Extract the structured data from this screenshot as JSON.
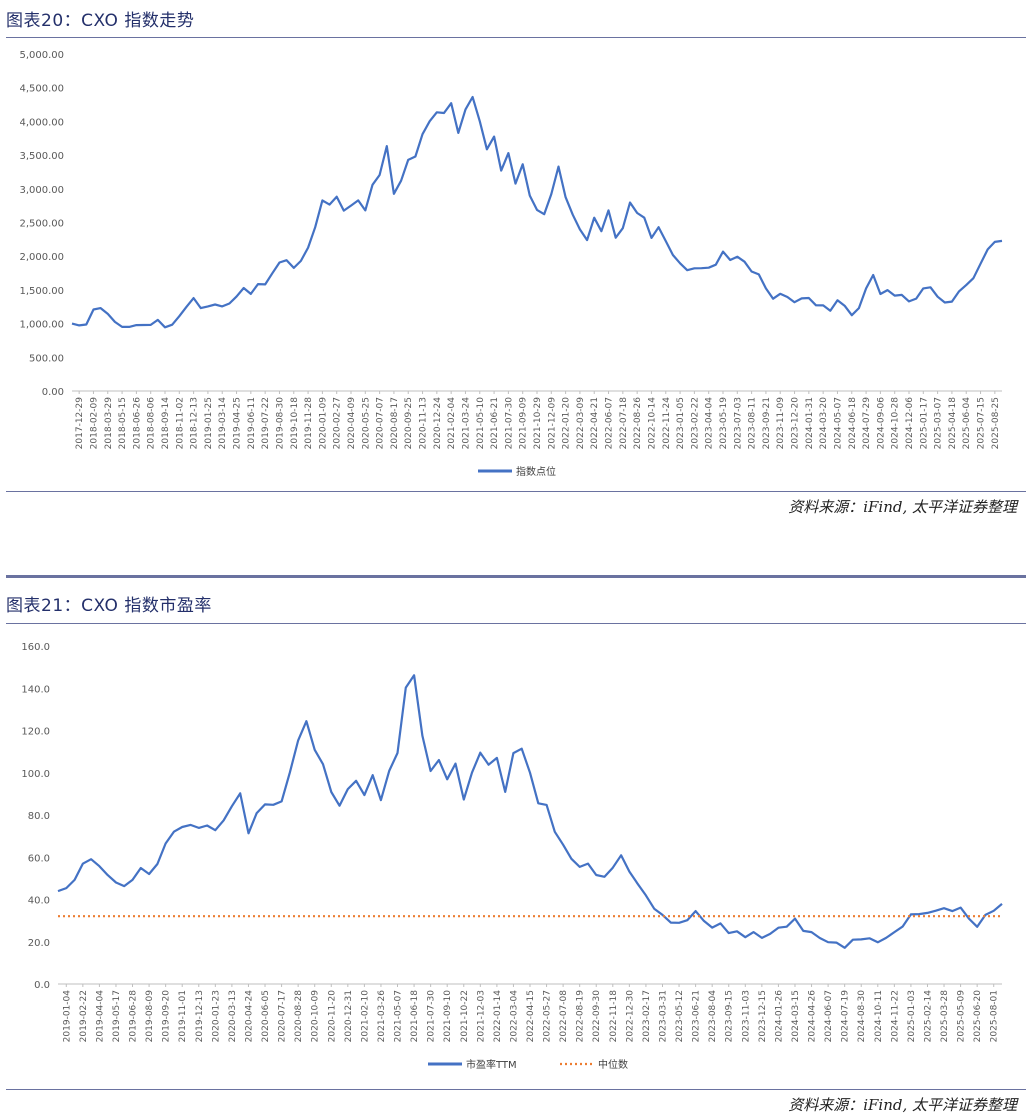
{
  "figures": [
    {
      "title": "图表20：CXO 指数走势",
      "source": "资料来源：iFind, 太平洋证券整理"
    },
    {
      "title": "图表21：CXO 指数市盈率",
      "source": "资料来源：iFind, 太平洋证券整理"
    }
  ],
  "colors": {
    "series": "#4472c4",
    "median": "#ed7d31",
    "frame": "#6a72a0",
    "title": "#24306b"
  },
  "chart_data": [
    {
      "type": "line",
      "title": "CXO 指数走势",
      "ylim": [
        0,
        5000
      ],
      "y_ticks": [
        "0.00",
        "500.00",
        "1,000.00",
        "1,500.00",
        "2,000.00",
        "2,500.00",
        "3,000.00",
        "3,500.00",
        "4,000.00",
        "4,500.00",
        "5,000.00"
      ],
      "x_ticks": [
        "2017-12-29",
        "2018-02-09",
        "2018-03-29",
        "2018-05-15",
        "2018-06-26",
        "2018-08-06",
        "2018-09-14",
        "2018-11-02",
        "2018-12-13",
        "2019-01-25",
        "2019-03-14",
        "2019-04-25",
        "2019-06-11",
        "2019-07-22",
        "2019-08-30",
        "2019-10-18",
        "2019-11-28",
        "2020-01-09",
        "2020-02-27",
        "2020-04-09",
        "2020-05-25",
        "2020-07-07",
        "2020-08-17",
        "2020-09-25",
        "2020-11-13",
        "2020-12-24",
        "2021-02-04",
        "2021-03-24",
        "2021-05-10",
        "2021-06-21",
        "2021-07-30",
        "2021-09-09",
        "2021-10-29",
        "2021-12-09",
        "2022-01-20",
        "2022-03-09",
        "2022-04-21",
        "2022-06-07",
        "2022-07-18",
        "2022-08-26",
        "2022-10-14",
        "2022-11-24",
        "2023-01-05",
        "2023-02-22",
        "2023-04-04",
        "2023-05-19",
        "2023-07-03",
        "2023-08-11",
        "2023-09-21",
        "2023-11-09",
        "2023-12-20",
        "2024-01-31",
        "2024-03-20",
        "2024-05-07",
        "2024-06-18",
        "2024-07-29",
        "2024-09-06",
        "2024-10-28",
        "2024-12-06",
        "2025-01-17",
        "2025-03-07",
        "2025-04-18",
        "2025-06-04",
        "2025-07-15",
        "2025-08-25"
      ],
      "series": [
        {
          "name": "指数点位",
          "values": [
            1000,
            960,
            1010,
            1180,
            1260,
            1120,
            1040,
            950,
            940,
            1000,
            950,
            1010,
            1030,
            960,
            980,
            1100,
            1270,
            1350,
            1260,
            1230,
            1300,
            1250,
            1290,
            1420,
            1500,
            1470,
            1560,
            1600,
            1740,
            1900,
            1960,
            1800,
            1960,
            2100,
            2450,
            2820,
            2760,
            2900,
            2650,
            2780,
            2800,
            2700,
            3050,
            3200,
            3650,
            2900,
            3150,
            3400,
            3500,
            3800,
            4000,
            4150,
            4100,
            4300,
            3800,
            4200,
            4350,
            4000,
            3600,
            3750,
            3300,
            3500,
            3100,
            3350,
            2900,
            2700,
            2600,
            2950,
            3300,
            2900,
            2600,
            2400,
            2250,
            2550,
            2400,
            2650,
            2300,
            2400,
            2800,
            2650,
            2550,
            2300,
            2400,
            2250,
            2000,
            1900,
            1800,
            1800,
            1850,
            1800,
            1900,
            2050,
            1950,
            2000,
            1900,
            1800,
            1700,
            1550,
            1350,
            1450,
            1400,
            1300,
            1400,
            1350,
            1300,
            1250,
            1200,
            1350,
            1250,
            1150,
            1200,
            1550,
            1700,
            1450,
            1500,
            1400,
            1450,
            1300,
            1400,
            1500,
            1550,
            1400,
            1300,
            1350,
            1450,
            1600,
            1650,
            1900,
            2100,
            2200,
            2250
          ]
        }
      ]
    },
    {
      "type": "line",
      "title": "CXO 指数市盈率",
      "ylim": [
        0,
        160
      ],
      "y_ticks": [
        "0.0",
        "20.0",
        "40.0",
        "60.0",
        "80.0",
        "100.0",
        "120.0",
        "140.0",
        "160.0"
      ],
      "x_ticks": [
        "2019-01-04",
        "2019-02-22",
        "2019-04-04",
        "2019-05-17",
        "2019-06-28",
        "2019-08-09",
        "2019-09-20",
        "2019-11-01",
        "2019-12-13",
        "2020-01-23",
        "2020-03-13",
        "2020-04-24",
        "2020-06-05",
        "2020-07-17",
        "2020-08-28",
        "2020-10-09",
        "2020-11-20",
        "2020-12-31",
        "2021-02-10",
        "2021-03-26",
        "2021-05-07",
        "2021-06-18",
        "2021-07-30",
        "2021-09-10",
        "2021-10-22",
        "2021-12-03",
        "2022-01-14",
        "2022-03-04",
        "2022-04-15",
        "2022-05-27",
        "2022-07-08",
        "2022-08-19",
        "2022-09-30",
        "2022-11-18",
        "2022-12-30",
        "2023-02-17",
        "2023-03-31",
        "2023-05-12",
        "2023-06-21",
        "2023-08-04",
        "2023-09-15",
        "2023-11-03",
        "2023-12-15",
        "2024-01-26",
        "2024-03-15",
        "2024-04-26",
        "2024-06-07",
        "2024-07-19",
        "2024-08-30",
        "2024-10-11",
        "2024-11-22",
        "2025-01-03",
        "2025-02-14",
        "2025-03-28",
        "2025-05-09",
        "2025-06-20",
        "2025-08-01"
      ],
      "series": [
        {
          "name": "市盈率TTM",
          "values": [
            44,
            45,
            50,
            56,
            60,
            55,
            52,
            48,
            46,
            50,
            54,
            53,
            56,
            67,
            72,
            74,
            76,
            73,
            76,
            72,
            78,
            84,
            90,
            72,
            80,
            86,
            84,
            87,
            100,
            115,
            125,
            110,
            105,
            90,
            85,
            92,
            96,
            90,
            98,
            88,
            100,
            110,
            140,
            146,
            118,
            100,
            107,
            96,
            105,
            87,
            100,
            110,
            103,
            108,
            90,
            110,
            111,
            100,
            86,
            84,
            73,
            65,
            60,
            55,
            57,
            52,
            50,
            56,
            60,
            54,
            47,
            42,
            36,
            32,
            30,
            28,
            31,
            34,
            30,
            27,
            28,
            25,
            24,
            23,
            24,
            22,
            24,
            26,
            28,
            30,
            26,
            24,
            22,
            20,
            19,
            18,
            20,
            22,
            21,
            20,
            22,
            24,
            28,
            32,
            34,
            33,
            35,
            36,
            34,
            37,
            30,
            28,
            32,
            35,
            38
          ]
        },
        {
          "name": "中位数",
          "values": [
            32.1
          ]
        }
      ]
    }
  ]
}
